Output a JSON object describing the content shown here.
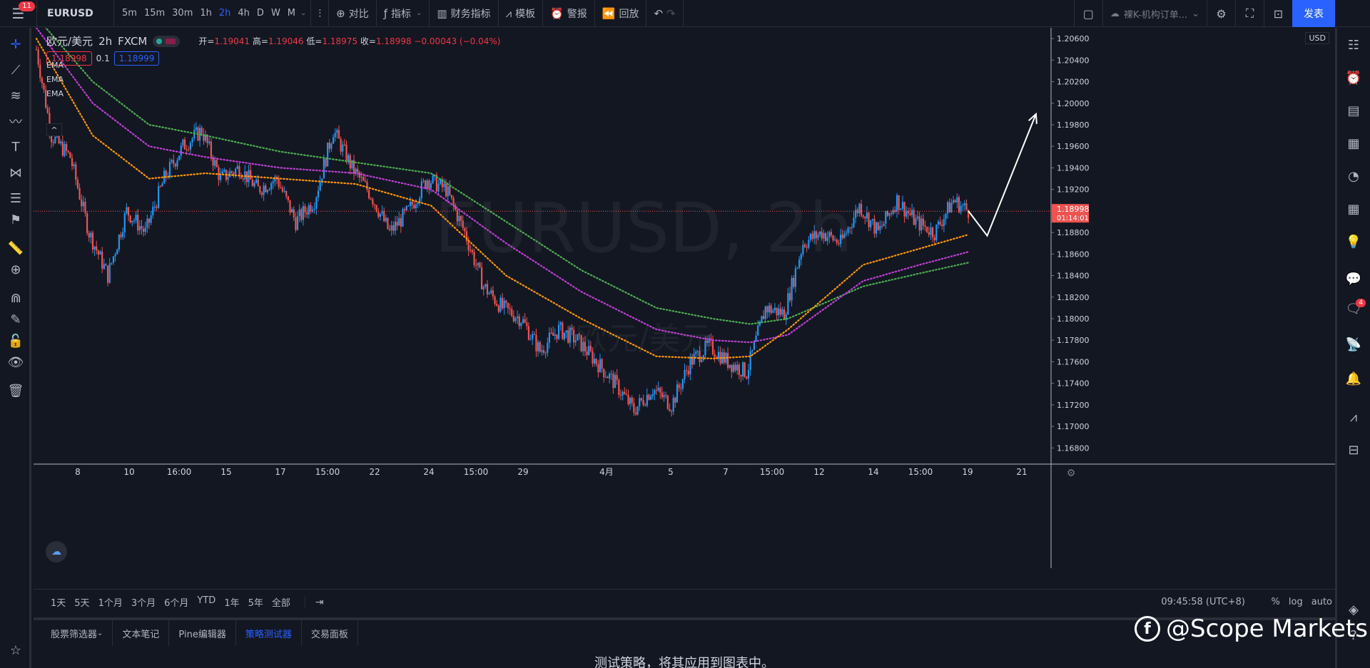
{
  "topbar": {
    "badge": "11",
    "symbol": "EURUSD",
    "intervals": [
      "5m",
      "15m",
      "30m",
      "1h",
      "2h",
      "4h",
      "D",
      "W",
      "M"
    ],
    "active_interval": "2h",
    "compare": "对比",
    "indicators": "指标",
    "financials": "财务指标",
    "templates": "模板",
    "alert": "警报",
    "replay": "回放",
    "layout_name": "裸K-机构订单...",
    "publish": "发表"
  },
  "legend": {
    "symbol": "欧元/美元",
    "interval": "2h",
    "broker": "FXCM",
    "open_label": "开=",
    "open": "1.19041",
    "high_label": "高=",
    "high": "1.19046",
    "low_label": "低=",
    "low": "1.18975",
    "close_label": "收=",
    "close": "1.18998",
    "change": "−0.00043 (−0.04%)",
    "sell": "1.18998",
    "spread": "0.1",
    "buy": "1.18999",
    "ema_labels": [
      "EMA",
      "EMA",
      "EMA"
    ]
  },
  "watermark": {
    "line1": "EURUSD, 2h",
    "line2": "欧元/美元"
  },
  "currency": "USD",
  "price_tag": {
    "price": "1.18998",
    "countdown": "01:14:01"
  },
  "range": {
    "buttons": [
      "1天",
      "5天",
      "1个月",
      "3个月",
      "6个月",
      "YTD",
      "1年",
      "5年",
      "全部"
    ],
    "time": "09:45:58 (UTC+8)",
    "opts": [
      "%",
      "log",
      "auto"
    ]
  },
  "bottom": {
    "tabs": [
      "股票筛选器",
      "文本笔记",
      "Pine编辑器",
      "策略测试器",
      "交易面板"
    ],
    "active": "策略测试器",
    "message": "测试策略，将其应用到图表中。"
  },
  "brand": "@Scope Markets",
  "colors": {
    "up": "#2196f3",
    "down": "#ef5350",
    "ema_fast": "#ff9800",
    "ema_mid": "#c03fd6",
    "ema_slow": "#4caf50",
    "accent": "#2962ff"
  },
  "chart_data": {
    "type": "candlestick",
    "symbol": "EURUSD",
    "y_ticks": [
      "1.20600",
      "1.20400",
      "1.20200",
      "1.20000",
      "1.19800",
      "1.19600",
      "1.19400",
      "1.19200",
      "1.19000",
      "1.18800",
      "1.18600",
      "1.18400",
      "1.18200",
      "1.18000",
      "1.17800",
      "1.17600",
      "1.17400",
      "1.17200",
      "1.17000",
      "1.16800"
    ],
    "ylim": [
      1.1665,
      1.207
    ],
    "x_ticks": [
      "8",
      "10",
      "16:00",
      "15",
      "17",
      "15:00",
      "22",
      "24",
      "15:00",
      "29",
      "4月",
      "5",
      "7",
      "15:00",
      "12",
      "14",
      "15:00",
      "19",
      "21"
    ],
    "current_price": 1.18998,
    "close_path": [
      [
        0,
        1.205
      ],
      [
        8,
        1.197
      ],
      [
        18,
        1.195
      ],
      [
        28,
        1.188
      ],
      [
        38,
        1.184
      ],
      [
        48,
        1.19
      ],
      [
        58,
        1.188
      ],
      [
        68,
        1.193
      ],
      [
        78,
        1.196
      ],
      [
        88,
        1.1975
      ],
      [
        98,
        1.193
      ],
      [
        108,
        1.194
      ],
      [
        118,
        1.192
      ],
      [
        128,
        1.193
      ],
      [
        138,
        1.189
      ],
      [
        148,
        1.191
      ],
      [
        158,
        1.1975
      ],
      [
        168,
        1.194
      ],
      [
        178,
        1.1915
      ],
      [
        188,
        1.188
      ],
      [
        198,
        1.19
      ],
      [
        208,
        1.193
      ],
      [
        218,
        1.192
      ],
      [
        228,
        1.188
      ],
      [
        238,
        1.183
      ],
      [
        248,
        1.181
      ],
      [
        258,
        1.18
      ],
      [
        268,
        1.177
      ],
      [
        278,
        1.179
      ],
      [
        288,
        1.178
      ],
      [
        298,
        1.176
      ],
      [
        308,
        1.174
      ],
      [
        318,
        1.1715
      ],
      [
        328,
        1.1735
      ],
      [
        338,
        1.172
      ],
      [
        348,
        1.176
      ],
      [
        358,
        1.1775
      ],
      [
        368,
        1.176
      ],
      [
        378,
        1.175
      ],
      [
        388,
        1.181
      ],
      [
        398,
        1.1805
      ],
      [
        408,
        1.187
      ],
      [
        418,
        1.188
      ],
      [
        428,
        1.187
      ],
      [
        438,
        1.1905
      ],
      [
        448,
        1.188
      ],
      [
        458,
        1.191
      ],
      [
        468,
        1.189
      ],
      [
        478,
        1.188
      ],
      [
        488,
        1.191
      ],
      [
        496,
        1.19
      ]
    ],
    "ema_fast_path": [
      [
        0,
        1.206
      ],
      [
        30,
        1.197
      ],
      [
        60,
        1.193
      ],
      [
        90,
        1.1935
      ],
      [
        130,
        1.193
      ],
      [
        170,
        1.1925
      ],
      [
        210,
        1.1905
      ],
      [
        250,
        1.184
      ],
      [
        290,
        1.18
      ],
      [
        330,
        1.1765
      ],
      [
        360,
        1.1763
      ],
      [
        380,
        1.1765
      ],
      [
        400,
        1.179
      ],
      [
        420,
        1.182
      ],
      [
        440,
        1.185
      ],
      [
        470,
        1.1865
      ],
      [
        496,
        1.1878
      ]
    ],
    "ema_mid_path": [
      [
        0,
        1.207
      ],
      [
        30,
        1.2
      ],
      [
        60,
        1.196
      ],
      [
        90,
        1.195
      ],
      [
        130,
        1.194
      ],
      [
        170,
        1.1935
      ],
      [
        210,
        1.192
      ],
      [
        250,
        1.187
      ],
      [
        290,
        1.1825
      ],
      [
        330,
        1.179
      ],
      [
        360,
        1.178
      ],
      [
        380,
        1.1778
      ],
      [
        400,
        1.1785
      ],
      [
        420,
        1.181
      ],
      [
        440,
        1.1835
      ],
      [
        470,
        1.185
      ],
      [
        496,
        1.1862
      ]
    ],
    "ema_slow_path": [
      [
        0,
        1.208
      ],
      [
        30,
        1.202
      ],
      [
        60,
        1.198
      ],
      [
        90,
        1.197
      ],
      [
        130,
        1.1955
      ],
      [
        170,
        1.1945
      ],
      [
        210,
        1.1935
      ],
      [
        250,
        1.189
      ],
      [
        290,
        1.1845
      ],
      [
        330,
        1.181
      ],
      [
        360,
        1.18
      ],
      [
        380,
        1.1795
      ],
      [
        400,
        1.18
      ],
      [
        420,
        1.1815
      ],
      [
        440,
        1.183
      ],
      [
        470,
        1.1842
      ],
      [
        496,
        1.1852
      ]
    ],
    "projection": [
      [
        496,
        1.19
      ],
      [
        506,
        1.1877
      ],
      [
        532,
        1.199
      ]
    ]
  }
}
